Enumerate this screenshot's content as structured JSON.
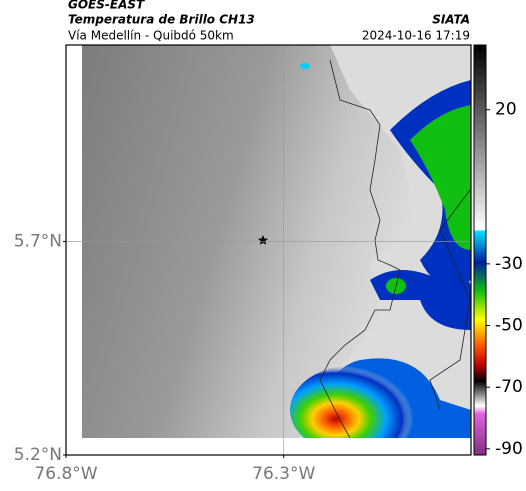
{
  "header": {
    "source": "GOES-EAST",
    "product": "Temperatura de Brillo CH13",
    "agency": "SIATA",
    "region": "Vía Medellín - Quibdó 50km",
    "datetime": "2024-10-16 17:19"
  },
  "map": {
    "latlim": [
      5.2,
      6.16
    ],
    "lonlim": [
      -76.8,
      -75.87
    ],
    "lat_ticks": [
      {
        "value": 5.2,
        "label": "5.2°N"
      },
      {
        "value": 5.7,
        "label": "5.7°N"
      }
    ],
    "lon_ticks": [
      {
        "value": -76.8,
        "label": "76.8°W"
      },
      {
        "value": -76.3,
        "label": "76.3°W"
      }
    ],
    "grid": true
  },
  "colorbar": {
    "lim": [
      -92,
      41
    ],
    "ticks": [
      20,
      -30,
      -50,
      -70,
      -90
    ]
  }
}
